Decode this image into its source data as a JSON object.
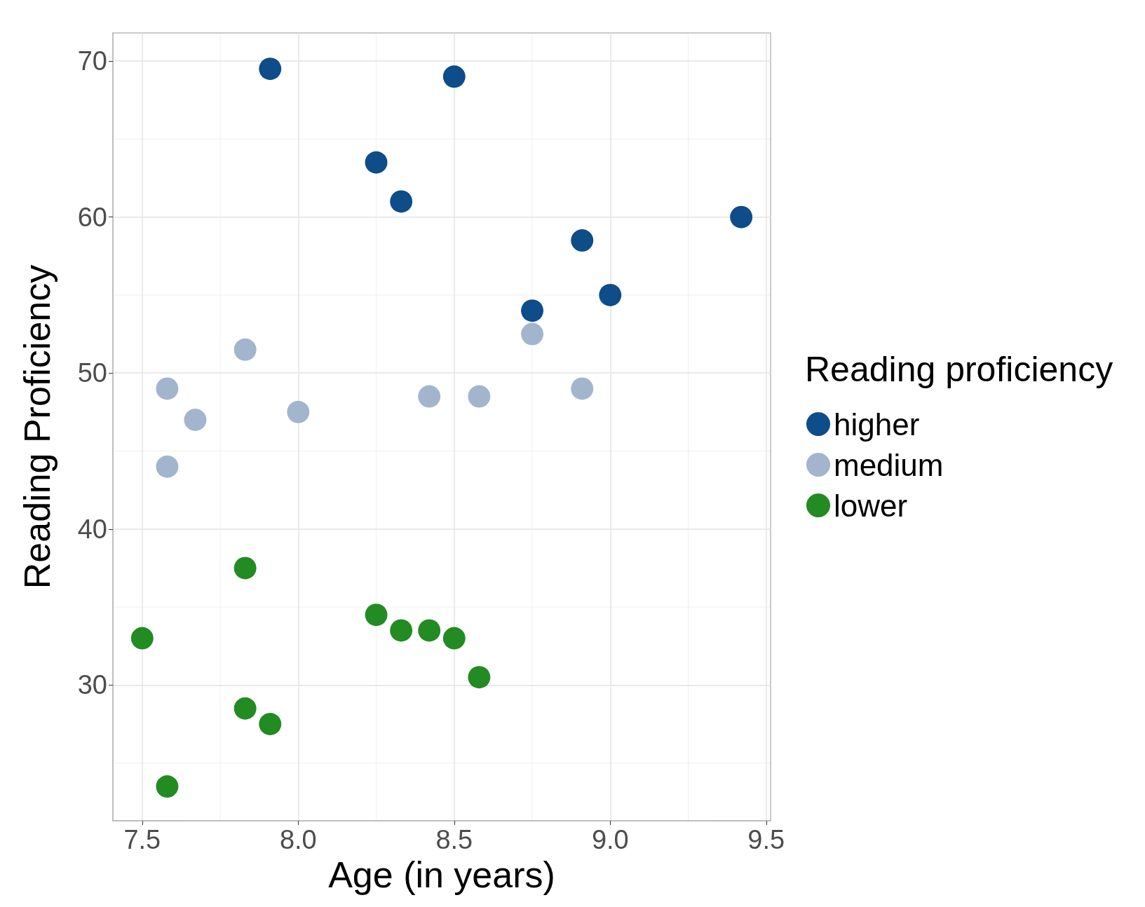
{
  "chart_data": {
    "type": "scatter",
    "xlabel": "Age (in years)",
    "ylabel": "Reading Proficiency",
    "legend_title": "Reading proficiency",
    "xlim": [
      7.406,
      9.514
    ],
    "ylim": [
      21.3,
      71.8
    ],
    "xticks": [
      {
        "value": 7.5,
        "label": "7.5"
      },
      {
        "value": 8,
        "label": "8.0"
      },
      {
        "value": 8.5,
        "label": "8.5"
      },
      {
        "value": 9,
        "label": "9.0"
      },
      {
        "value": 9.5,
        "label": "9.5"
      }
    ],
    "yticks": [
      30,
      40,
      50,
      60,
      70
    ],
    "grid": true,
    "legend": "right",
    "marker": "circle",
    "series": [
      {
        "name": "higher",
        "color": "#0e4c8a",
        "x": [
          7.91,
          8.5,
          8.25,
          8.33,
          9.42,
          8.91,
          8.75,
          9.0
        ],
        "values": [
          69.5,
          69,
          63.5,
          61,
          60,
          58.5,
          54,
          55
        ]
      },
      {
        "name": "medium",
        "color": "#a3b5cc",
        "x": [
          7.83,
          7.58,
          7.67,
          7.58,
          8.0,
          8.42,
          8.58,
          8.75,
          8.91
        ],
        "values": [
          51.5,
          49,
          47,
          44,
          47.5,
          48.5,
          48.5,
          52.5,
          49
        ]
      },
      {
        "name": "lower",
        "color": "#228b22",
        "x": [
          7.83,
          7.5,
          8.25,
          8.33,
          8.42,
          8.5,
          8.58,
          7.83,
          7.91,
          7.58
        ],
        "values": [
          37.5,
          33,
          34.5,
          33.5,
          33.5,
          33,
          30.5,
          28.5,
          27.5,
          23.5
        ]
      }
    ]
  }
}
